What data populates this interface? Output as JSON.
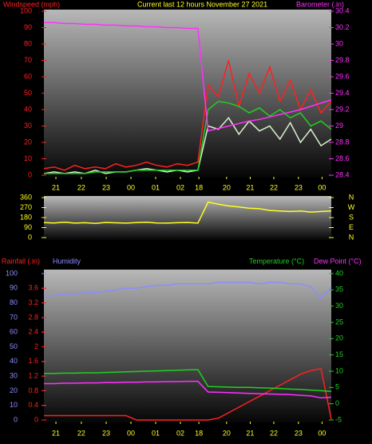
{
  "chart_data": [
    {
      "type": "line",
      "title": "Current last 12 hours November 27 2021",
      "ylabel": "Windspeed (mph)",
      "y2label": "Barometer (.in)",
      "x": [
        0,
        1,
        2,
        3,
        4,
        5,
        6,
        7,
        8,
        9,
        10,
        11,
        12,
        13,
        14,
        15,
        16,
        17,
        18,
        19,
        20,
        21,
        22,
        23,
        24,
        25,
        26,
        27,
        28
      ],
      "xlim": [
        0,
        28
      ],
      "xticks": [
        {
          "value": 1.17,
          "label": "21"
        },
        {
          "value": 3.65,
          "label": "22"
        },
        {
          "value": 6.07,
          "label": "23"
        },
        {
          "value": 8.48,
          "label": "00"
        },
        {
          "value": 10.89,
          "label": "01"
        },
        {
          "value": 13.3,
          "label": "02"
        },
        {
          "value": 15.1,
          "label": "18"
        },
        {
          "value": 17.8,
          "label": "20"
        },
        {
          "value": 20.1,
          "label": "21"
        },
        {
          "value": 22.4,
          "label": "22"
        },
        {
          "value": 24.8,
          "label": "23"
        },
        {
          "value": 27.1,
          "label": "00"
        }
      ],
      "ylim": [
        0,
        100
      ],
      "yticks": [
        0,
        10,
        20,
        30,
        40,
        50,
        60,
        70,
        80,
        90,
        100
      ],
      "y2lim": [
        28.4,
        30.4
      ],
      "y2ticks": [
        28.4,
        28.6,
        28.8,
        29,
        29.2,
        29.4,
        29.6,
        29.8,
        30,
        30.2,
        30.4
      ],
      "series": [
        {
          "color": "#ff2020",
          "axis": "y",
          "values": [
            4,
            5,
            3,
            6,
            4,
            5,
            4,
            7,
            5,
            6,
            8,
            6,
            5,
            7,
            6,
            8,
            55,
            48,
            70,
            42,
            62,
            50,
            66,
            45,
            58,
            40,
            52,
            38,
            45
          ]
        },
        {
          "color": "#d8f0d0",
          "axis": "y",
          "values": [
            1,
            2,
            1,
            2,
            1,
            3,
            1,
            2,
            2,
            3,
            4,
            3,
            2,
            3,
            2,
            3,
            30,
            28,
            35,
            25,
            33,
            27,
            30,
            22,
            32,
            20,
            28,
            18,
            22
          ]
        },
        {
          "color": "#20d020",
          "axis": "y",
          "values": [
            1,
            1,
            1,
            1,
            1,
            2,
            2,
            2,
            2,
            3,
            3,
            3,
            3,
            3,
            3,
            3,
            40,
            45,
            44,
            42,
            38,
            41,
            36,
            40,
            35,
            38,
            30,
            33,
            28
          ]
        },
        {
          "color": "#ff30ff",
          "axis": "y2",
          "values": [
            30.26,
            30.26,
            30.25,
            30.25,
            30.24,
            30.24,
            30.23,
            30.23,
            30.22,
            30.22,
            30.21,
            30.21,
            30.2,
            30.2,
            30.19,
            30.19,
            28.94,
            28.97,
            29.0,
            29.03,
            29.06,
            29.08,
            29.11,
            29.14,
            29.17,
            29.2,
            29.24,
            29.28,
            29.32
          ]
        }
      ]
    },
    {
      "type": "line",
      "x": [
        0,
        1,
        2,
        3,
        4,
        5,
        6,
        7,
        8,
        9,
        10,
        11,
        12,
        13,
        14,
        15,
        16,
        17,
        18,
        19,
        20,
        21,
        22,
        23,
        24,
        25,
        26,
        27,
        28
      ],
      "xlim": [
        0,
        28
      ],
      "ylim": [
        0,
        360
      ],
      "yticks": [
        0,
        90,
        180,
        270,
        360
      ],
      "y2lim": [
        0,
        360
      ],
      "y2ticks": [
        {
          "value": 360,
          "label": "N"
        },
        {
          "value": 270,
          "label": "W"
        },
        {
          "value": 180,
          "label": "S"
        },
        {
          "value": 90,
          "label": "E"
        },
        {
          "value": 0,
          "label": "N"
        }
      ],
      "series": [
        {
          "color": "#ffff20",
          "axis": "y",
          "values": [
            135,
            132,
            138,
            130,
            134,
            128,
            136,
            133,
            130,
            135,
            138,
            132,
            130,
            134,
            136,
            130,
            320,
            300,
            285,
            275,
            265,
            260,
            245,
            240,
            235,
            240,
            230,
            235,
            240
          ]
        }
      ]
    },
    {
      "type": "line",
      "x": [
        0,
        1,
        2,
        3,
        4,
        5,
        6,
        7,
        8,
        9,
        10,
        11,
        12,
        13,
        14,
        15,
        16,
        17,
        18,
        19,
        20,
        21,
        22,
        23,
        24,
        25,
        26,
        27,
        28
      ],
      "xlim": [
        0,
        28
      ],
      "xticks": [
        {
          "value": 1.17,
          "label": "21"
        },
        {
          "value": 3.65,
          "label": "22"
        },
        {
          "value": 6.07,
          "label": "23"
        },
        {
          "value": 8.48,
          "label": "00"
        },
        {
          "value": 10.89,
          "label": "01"
        },
        {
          "value": 13.3,
          "label": "02"
        },
        {
          "value": 15.1,
          "label": "18"
        },
        {
          "value": 17.8,
          "label": "20"
        },
        {
          "value": 20.1,
          "label": "21"
        },
        {
          "value": 22.4,
          "label": "22"
        },
        {
          "value": 24.8,
          "label": "23"
        },
        {
          "value": 27.1,
          "label": "00"
        }
      ],
      "ylim": [
        0,
        100
      ],
      "yticks": [
        0,
        10,
        20,
        30,
        40,
        50,
        60,
        70,
        80,
        90,
        100
      ],
      "y2lim": [
        -5,
        40
      ],
      "y2ticks": [
        -5,
        0,
        5,
        10,
        15,
        20,
        25,
        30,
        35,
        40
      ],
      "y3lim": [
        0,
        4
      ],
      "y3ticks": [
        0,
        0.4,
        0.8,
        1.2,
        1.6,
        2,
        2.4,
        2.8,
        3.2,
        3.6
      ],
      "series": [
        {
          "name": "Rainfall (.in)",
          "color": "#ff2020",
          "axis": "y3",
          "values": [
            0.12,
            0.12,
            0.12,
            0.12,
            0.12,
            0.12,
            0.12,
            0.12,
            0.12,
            0,
            0,
            0,
            0,
            0,
            0,
            0,
            0,
            0.05,
            0.2,
            0.35,
            0.5,
            0.65,
            0.8,
            0.95,
            1.1,
            1.25,
            1.35,
            1.4,
            0.02
          ]
        },
        {
          "name": "Humidity",
          "color": "#8c8cff",
          "axis": "y",
          "values": [
            85,
            85,
            86,
            86,
            87,
            87,
            88,
            89,
            90,
            90,
            91,
            92,
            92,
            93,
            93,
            93,
            93,
            94,
            94,
            94,
            94,
            93,
            94,
            94,
            93,
            93,
            91,
            83,
            91
          ]
        },
        {
          "name": "Temperature (°C)",
          "color": "#20d020",
          "axis": "y2",
          "values": [
            9.3,
            9.3,
            9.4,
            9.4,
            9.5,
            9.5,
            9.6,
            9.7,
            9.8,
            9.9,
            10,
            10.1,
            10.2,
            10.3,
            10.4,
            10.5,
            5.3,
            5.2,
            5.1,
            5,
            5,
            4.9,
            4.8,
            4.7,
            4.5,
            4.4,
            4.2,
            4,
            3.8
          ]
        },
        {
          "name": "Dew Point (°C)",
          "color": "#ff30ff",
          "axis": "y2",
          "values": [
            6.2,
            6.2,
            6.3,
            6.3,
            6.4,
            6.4,
            6.5,
            6.5,
            6.6,
            6.6,
            6.7,
            6.7,
            6.8,
            6.8,
            6.9,
            6.9,
            3.6,
            3.5,
            3.4,
            3.3,
            3.2,
            3.1,
            3,
            2.9,
            2.8,
            2.6,
            2.4,
            1.8,
            2
          ]
        }
      ]
    }
  ]
}
